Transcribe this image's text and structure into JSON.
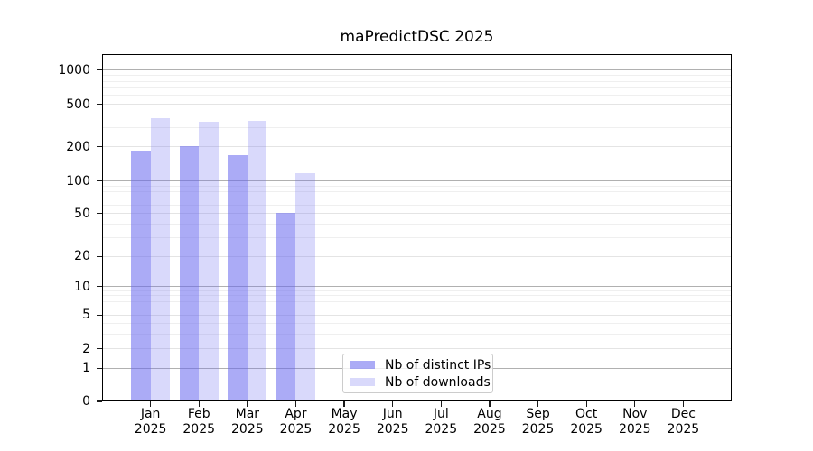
{
  "title": "maPredictDSC 2025",
  "y_axis": {
    "tick_labels": [
      "0",
      "1",
      "2",
      "5",
      "10",
      "20",
      "50",
      "100",
      "200",
      "500",
      "1000"
    ],
    "tick_values": [
      0,
      1,
      2,
      5,
      10,
      20,
      50,
      100,
      200,
      500,
      1000
    ]
  },
  "x_axis": {
    "labels": [
      {
        "month": "Jan",
        "year": "2025"
      },
      {
        "month": "Feb",
        "year": "2025"
      },
      {
        "month": "Mar",
        "year": "2025"
      },
      {
        "month": "Apr",
        "year": "2025"
      },
      {
        "month": "May",
        "year": "2025"
      },
      {
        "month": "Jun",
        "year": "2025"
      },
      {
        "month": "Jul",
        "year": "2025"
      },
      {
        "month": "Aug",
        "year": "2025"
      },
      {
        "month": "Sep",
        "year": "2025"
      },
      {
        "month": "Oct",
        "year": "2025"
      },
      {
        "month": "Nov",
        "year": "2025"
      },
      {
        "month": "Dec",
        "year": "2025"
      }
    ]
  },
  "chart_data": {
    "type": "bar",
    "title": "maPredictDSC 2025",
    "categories": [
      "Jan 2025",
      "Feb 2025",
      "Mar 2025",
      "Apr 2025",
      "May 2025",
      "Jun 2025",
      "Jul 2025",
      "Aug 2025",
      "Sep 2025",
      "Oct 2025",
      "Nov 2025",
      "Dec 2025"
    ],
    "series": [
      {
        "name": "Nb of distinct IPs",
        "color": "#6666ee",
        "alpha": 0.55,
        "values": [
          185,
          205,
          170,
          51,
          null,
          null,
          null,
          null,
          null,
          null,
          null,
          null
        ]
      },
      {
        "name": "Nb of downloads",
        "color": "#6666ee",
        "alpha": 0.25,
        "values": [
          370,
          345,
          350,
          116,
          null,
          null,
          null,
          null,
          null,
          null,
          null,
          null
        ]
      }
    ],
    "yscale": "log",
    "yticks": [
      0,
      1,
      2,
      5,
      10,
      20,
      50,
      100,
      200,
      500,
      1000
    ],
    "ylim": [
      0,
      1400
    ],
    "xlabel": "",
    "ylabel": "",
    "grid": true,
    "legend_position": "lower center inside"
  },
  "colors": {
    "bar_base": "#6666ee",
    "grid_major": "#b0b0b0",
    "grid_minor": "#efefef",
    "spine": "#000000",
    "background": "#ffffff"
  }
}
